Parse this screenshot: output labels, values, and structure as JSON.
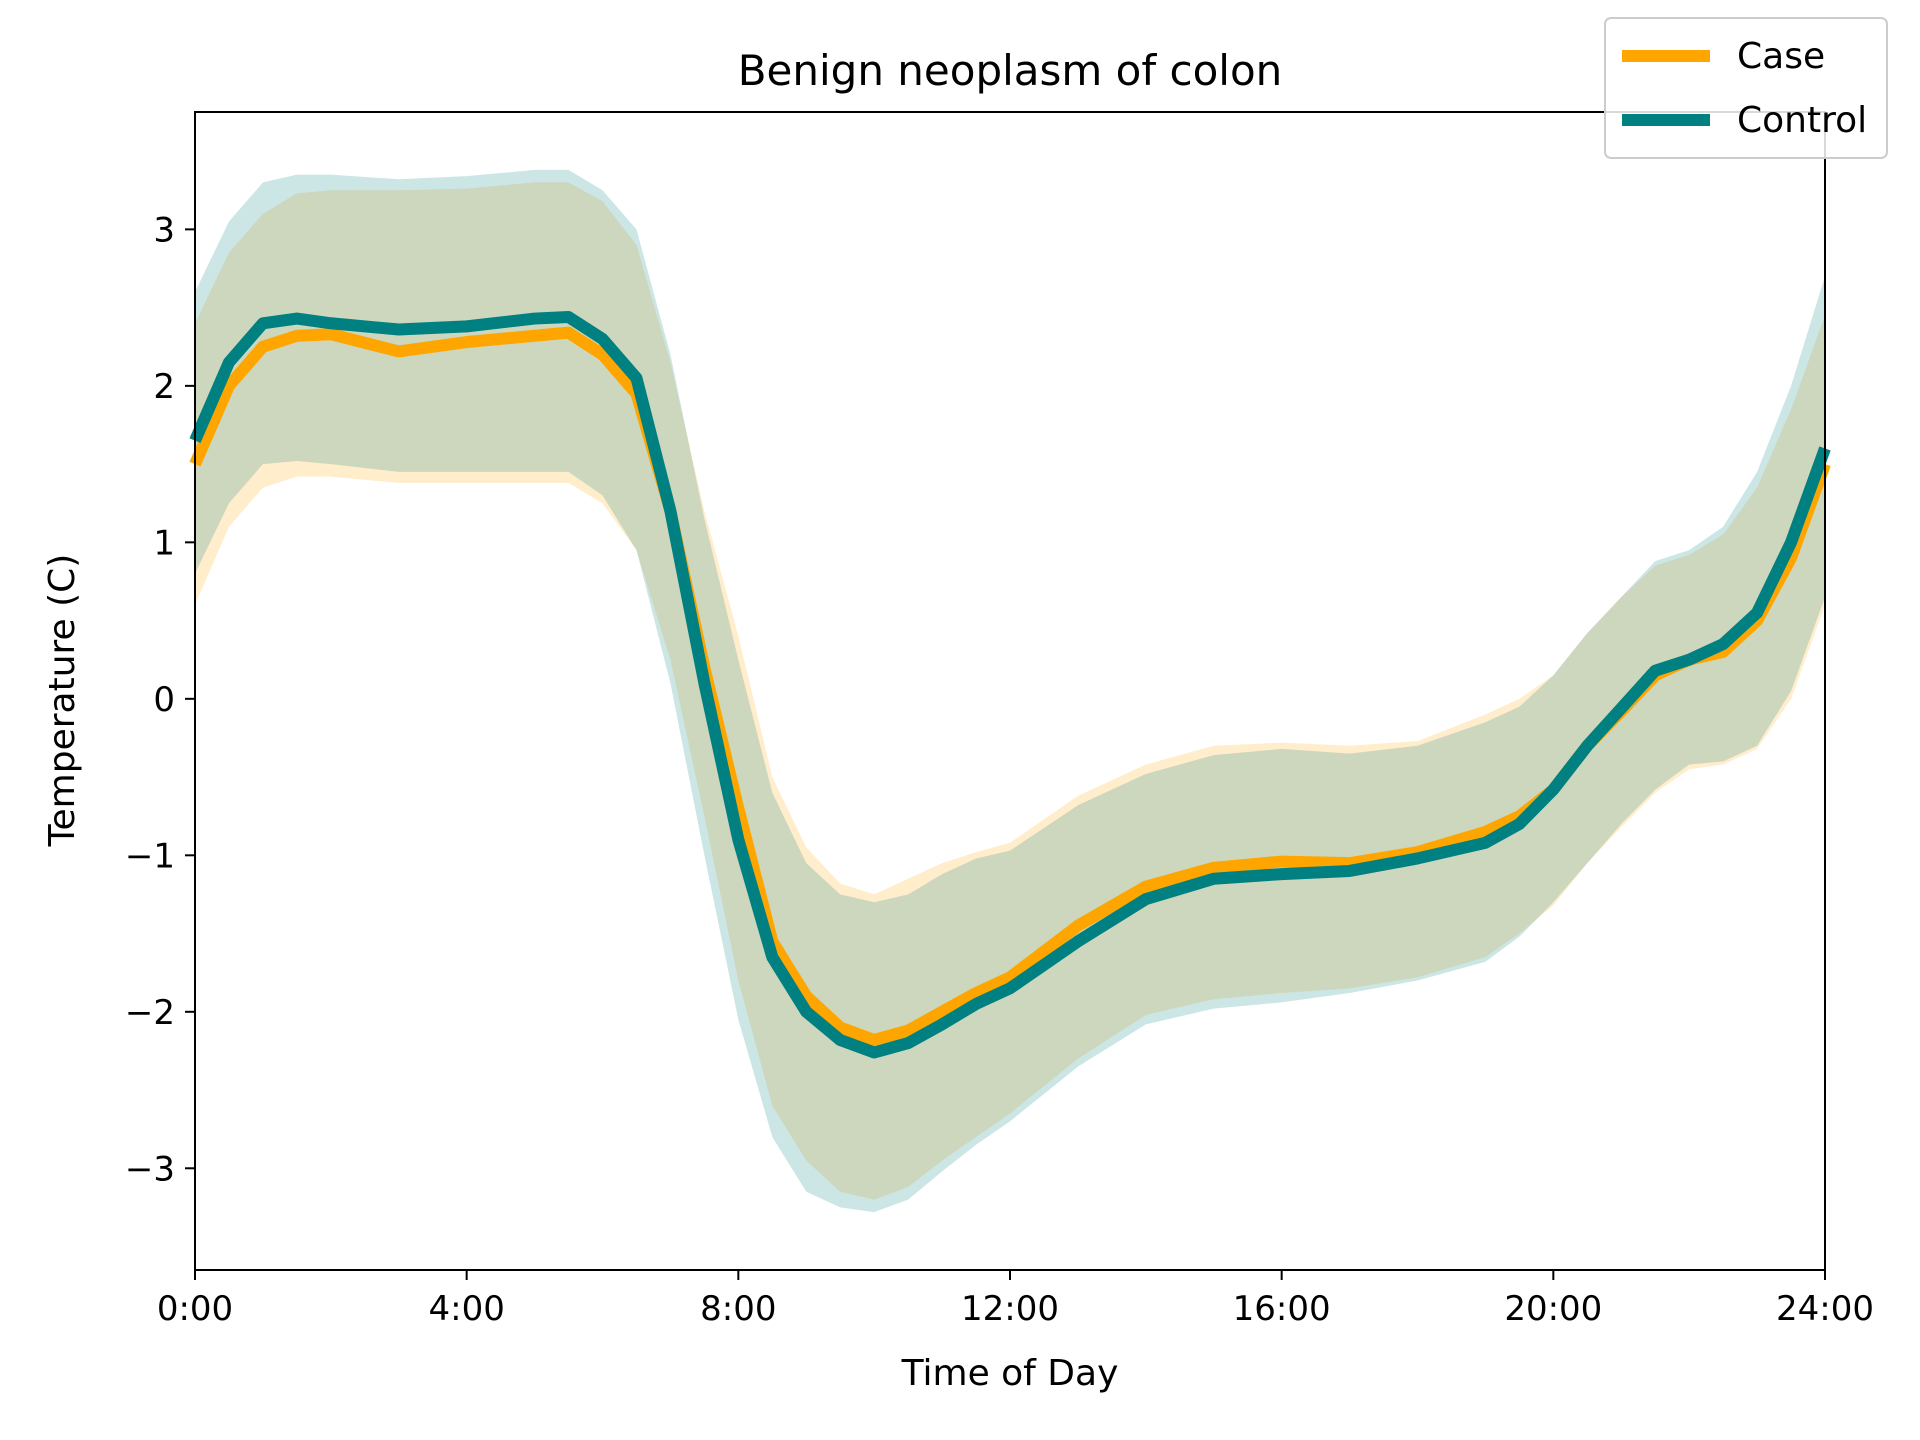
{
  "chart_data": {
    "type": "line",
    "title": "Benign neoplasm of colon",
    "xlabel": "Time of Day",
    "ylabel": "Temperature (C)",
    "xlim": [
      0,
      24
    ],
    "ylim": [
      -3.65,
      3.75
    ],
    "x_ticks": [
      {
        "value": 0,
        "label": "0:00"
      },
      {
        "value": 4,
        "label": "4:00"
      },
      {
        "value": 8,
        "label": "8:00"
      },
      {
        "value": 12,
        "label": "12:00"
      },
      {
        "value": 16,
        "label": "16:00"
      },
      {
        "value": 20,
        "label": "20:00"
      },
      {
        "value": 24,
        "label": "24:00"
      }
    ],
    "y_ticks": [
      {
        "value": 3,
        "label": "3"
      },
      {
        "value": 2,
        "label": "2"
      },
      {
        "value": 1,
        "label": "1"
      },
      {
        "value": 0,
        "label": "0"
      },
      {
        "value": -1,
        "label": "−1"
      },
      {
        "value": -2,
        "label": "−2"
      },
      {
        "value": -3,
        "label": "−3"
      }
    ],
    "grid": false,
    "legend_position": "top-right",
    "x": [
      0,
      0.5,
      1,
      1.5,
      2,
      3,
      4,
      5,
      5.5,
      6,
      6.5,
      7,
      7.5,
      8,
      8.5,
      9,
      9.5,
      10,
      10.5,
      11,
      11.5,
      12,
      13,
      14,
      15,
      16,
      17,
      18,
      19,
      19.5,
      20,
      20.5,
      21,
      21.5,
      22,
      22.5,
      23,
      23.5,
      24
    ],
    "series": [
      {
        "name": "Case",
        "color": "#FFA500",
        "band_color": "#FFA500",
        "band_opacity": 0.2,
        "values": [
          1.5,
          2.0,
          2.25,
          2.32,
          2.33,
          2.22,
          2.28,
          2.32,
          2.34,
          2.2,
          1.95,
          1.2,
          0.2,
          -0.7,
          -1.55,
          -1.9,
          -2.1,
          -2.18,
          -2.12,
          -2.0,
          -1.88,
          -1.78,
          -1.45,
          -1.2,
          -1.08,
          -1.04,
          -1.05,
          -0.98,
          -0.85,
          -0.75,
          -0.58,
          -0.3,
          -0.08,
          0.15,
          0.25,
          0.3,
          0.5,
          0.9,
          1.5
        ],
        "lower": [
          0.6,
          1.1,
          1.35,
          1.42,
          1.42,
          1.38,
          1.38,
          1.38,
          1.38,
          1.25,
          0.95,
          0.25,
          -0.75,
          -1.8,
          -2.6,
          -2.95,
          -3.15,
          -3.2,
          -3.12,
          -2.95,
          -2.8,
          -2.65,
          -2.3,
          -2.02,
          -1.92,
          -1.88,
          -1.85,
          -1.78,
          -1.65,
          -1.5,
          -1.32,
          -1.05,
          -0.82,
          -0.6,
          -0.45,
          -0.42,
          -0.32,
          0.0,
          0.6
        ],
        "upper": [
          2.4,
          2.85,
          3.1,
          3.23,
          3.25,
          3.25,
          3.26,
          3.3,
          3.3,
          3.18,
          2.9,
          2.15,
          1.2,
          0.4,
          -0.5,
          -0.95,
          -1.18,
          -1.25,
          -1.15,
          -1.05,
          -0.98,
          -0.92,
          -0.62,
          -0.42,
          -0.3,
          -0.28,
          -0.3,
          -0.27,
          -0.1,
          0.0,
          0.15,
          0.42,
          0.65,
          0.85,
          0.92,
          1.05,
          1.35,
          1.85,
          2.45
        ]
      },
      {
        "name": "Control",
        "color": "#008080",
        "band_color": "#008080",
        "band_opacity": 0.2,
        "values": [
          1.65,
          2.15,
          2.4,
          2.43,
          2.4,
          2.36,
          2.38,
          2.43,
          2.44,
          2.3,
          2.05,
          1.2,
          0.1,
          -0.9,
          -1.65,
          -2.0,
          -2.18,
          -2.26,
          -2.2,
          -2.08,
          -1.95,
          -1.85,
          -1.55,
          -1.28,
          -1.15,
          -1.12,
          -1.1,
          -1.02,
          -0.92,
          -0.8,
          -0.58,
          -0.3,
          -0.06,
          0.18,
          0.25,
          0.35,
          0.55,
          1.0,
          1.6
        ],
        "lower": [
          0.8,
          1.25,
          1.5,
          1.52,
          1.5,
          1.45,
          1.45,
          1.45,
          1.45,
          1.3,
          0.95,
          0.1,
          -1.0,
          -2.05,
          -2.8,
          -3.15,
          -3.25,
          -3.28,
          -3.2,
          -3.02,
          -2.85,
          -2.7,
          -2.35,
          -2.08,
          -1.98,
          -1.94,
          -1.88,
          -1.8,
          -1.68,
          -1.52,
          -1.3,
          -1.05,
          -0.8,
          -0.58,
          -0.42,
          -0.4,
          -0.3,
          0.05,
          0.65
        ],
        "upper": [
          2.6,
          3.05,
          3.3,
          3.35,
          3.35,
          3.32,
          3.34,
          3.38,
          3.38,
          3.25,
          3.0,
          2.2,
          1.15,
          0.25,
          -0.6,
          -1.05,
          -1.25,
          -1.3,
          -1.25,
          -1.12,
          -1.02,
          -0.97,
          -0.68,
          -0.48,
          -0.36,
          -0.32,
          -0.35,
          -0.3,
          -0.15,
          -0.05,
          0.15,
          0.42,
          0.65,
          0.88,
          0.95,
          1.1,
          1.45,
          2.0,
          2.7
        ]
      }
    ]
  }
}
